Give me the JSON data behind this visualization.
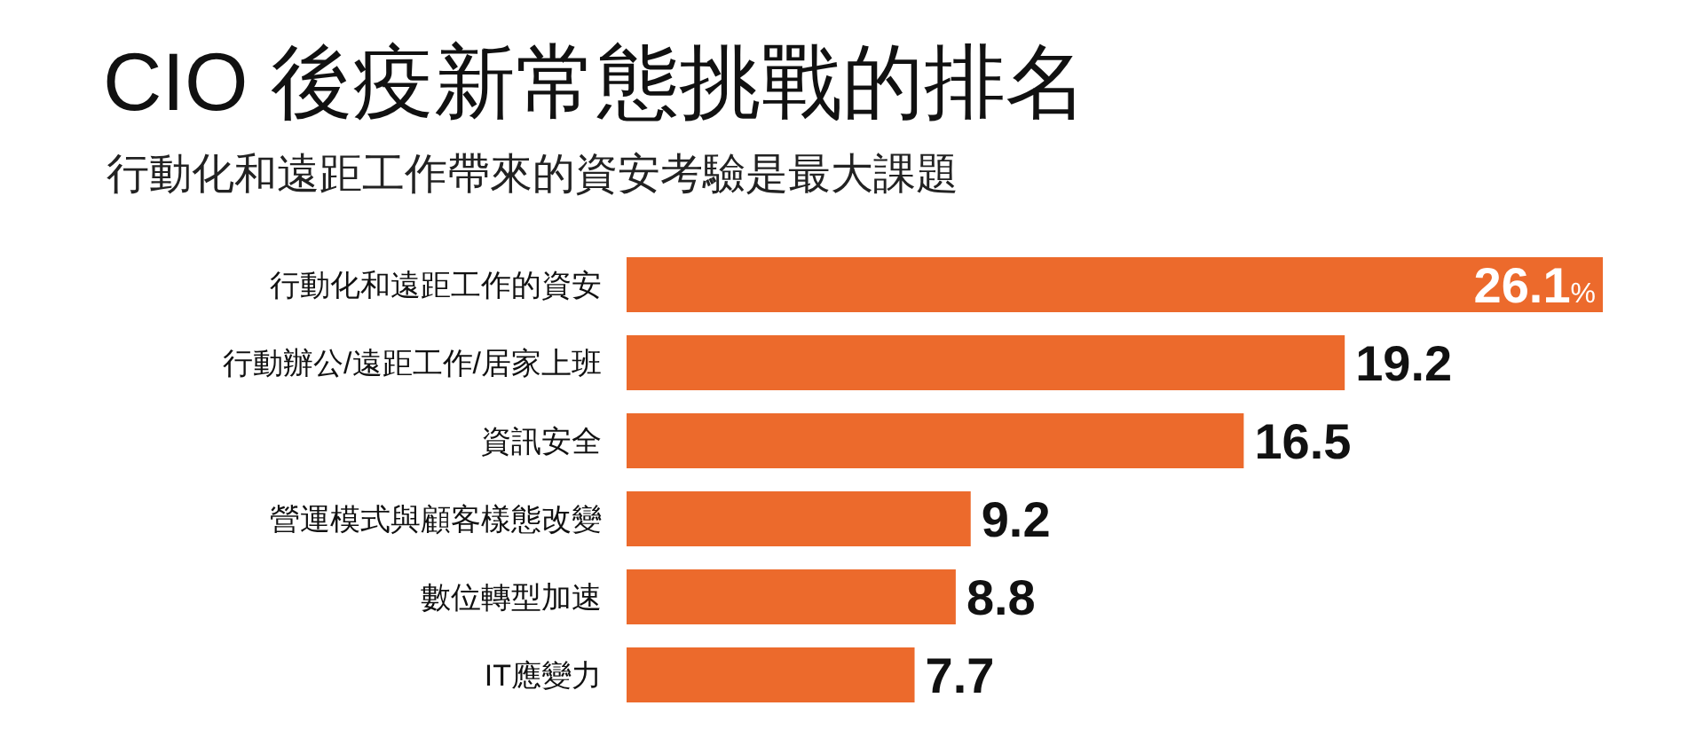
{
  "chart_data": {
    "type": "bar",
    "orientation": "horizontal",
    "title": "CIO 後疫新常態挑戰的排名",
    "subtitle": "行動化和遠距工作帶來的資安考驗是最大課題",
    "categories": [
      "行動化和遠距工作的資安",
      "行動辦公/遠距工作/居家上班",
      "資訊安全",
      "營運模式與顧客樣態改變",
      "數位轉型加速",
      "IT應變力"
    ],
    "values": [
      26.1,
      19.2,
      16.5,
      9.2,
      8.8,
      7.7
    ],
    "value_labels": [
      "26.1%",
      "19.2",
      "16.5",
      "9.2",
      "8.8",
      "7.7"
    ],
    "color": "#ec6a2c"
  }
}
